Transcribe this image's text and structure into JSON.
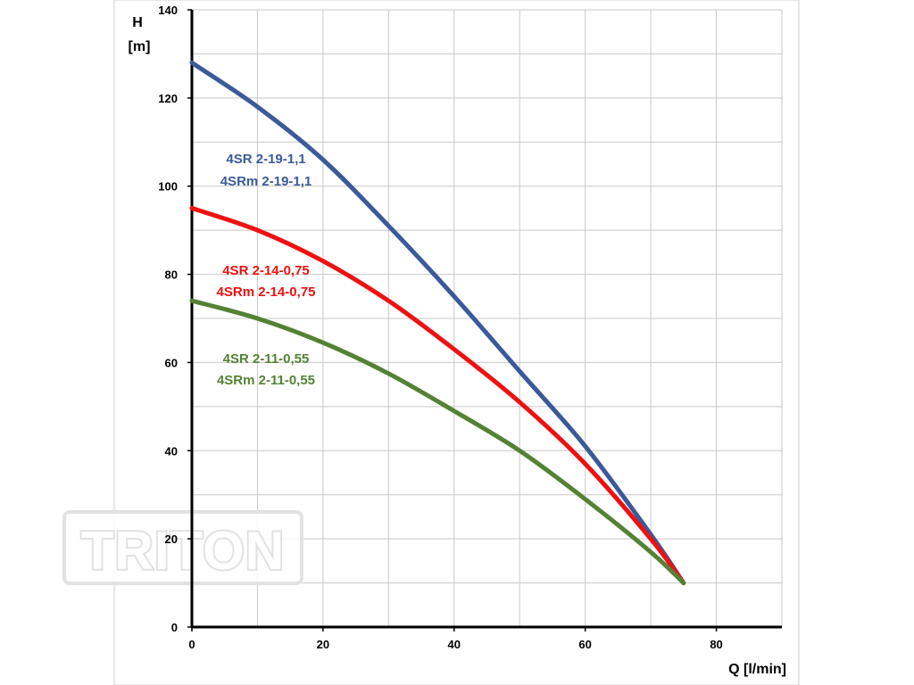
{
  "watermark": {
    "text": "TRITON"
  },
  "chart_data": {
    "type": "line",
    "xlabel": "Q [l/min]",
    "ylabel_lines": [
      "H",
      "[m]"
    ],
    "xlim": [
      0,
      90
    ],
    "ylim": [
      0,
      140
    ],
    "x_ticks": [
      0,
      20,
      40,
      60,
      80
    ],
    "y_ticks": [
      0,
      20,
      40,
      60,
      80,
      100,
      120,
      140
    ],
    "grid": true,
    "series": [
      {
        "name_lines": [
          "4SR 2-19-1,1",
          "4SRm 2-19-1,1"
        ],
        "color": "#3a5a9a",
        "x": [
          0,
          10,
          20,
          30,
          40,
          50,
          60,
          70,
          75
        ],
        "y": [
          128,
          118,
          106,
          91,
          75,
          58,
          41,
          21,
          10
        ]
      },
      {
        "name_lines": [
          "4SR 2-14-0,75",
          "4SRm 2-14-0,75"
        ],
        "color": "#ee1111",
        "x": [
          0,
          10,
          20,
          30,
          40,
          50,
          60,
          70,
          75
        ],
        "y": [
          95,
          90,
          83,
          74,
          63,
          51,
          37,
          20,
          10
        ]
      },
      {
        "name_lines": [
          "4SR 2-11-0,55",
          "4SRm 2-11-0,55"
        ],
        "color": "#548235",
        "x": [
          0,
          10,
          20,
          30,
          40,
          50,
          60,
          70,
          75
        ],
        "y": [
          74,
          70,
          64.5,
          57.5,
          49,
          40,
          29,
          17,
          10
        ]
      }
    ]
  }
}
